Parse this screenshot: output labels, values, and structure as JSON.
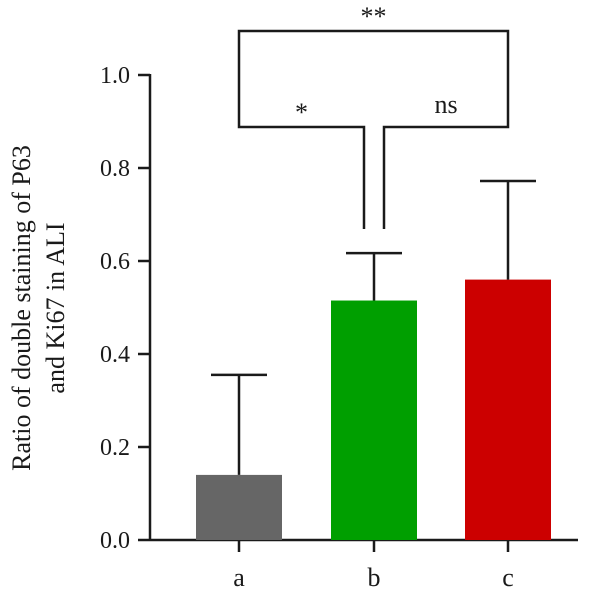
{
  "chart_data": {
    "type": "bar",
    "title": "",
    "xlabel": "",
    "ylabel_lines": [
      "Ratio of double staining of P63",
      "and Ki67 in ALI"
    ],
    "ylim": [
      0,
      1.0
    ],
    "yticks": [
      "0.0",
      "0.2",
      "0.4",
      "0.6",
      "0.8",
      "1.0"
    ],
    "grid": false,
    "categories": [
      "a",
      "b",
      "c"
    ],
    "values": [
      0.14,
      0.515,
      0.56
    ],
    "errors_upper": [
      0.355,
      0.617,
      0.772
    ],
    "colors": [
      "#666666",
      "#009f00",
      "#cc0000"
    ],
    "significance": [
      {
        "from": 0,
        "to": 1,
        "label": "*"
      },
      {
        "from": 1,
        "to": 2,
        "label": "ns"
      },
      {
        "from": 0,
        "to": 2,
        "label": "**"
      }
    ]
  }
}
